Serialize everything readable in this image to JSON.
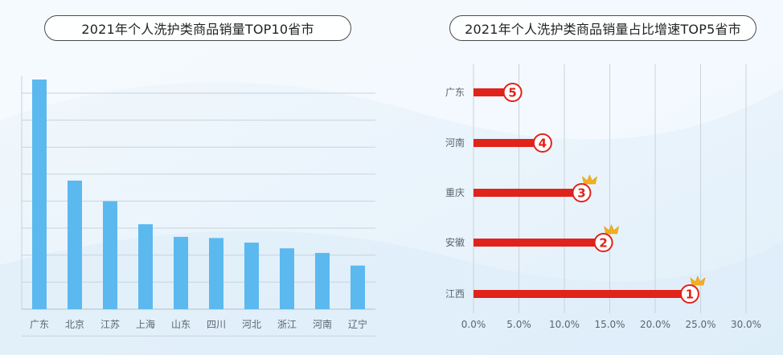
{
  "chart_data": [
    {
      "type": "bar",
      "title": "2021年个人洗护类商品销量TOP10省市",
      "categories": [
        "广东",
        "北京",
        "江苏",
        "上海",
        "山东",
        "四川",
        "河北",
        "浙江",
        "河南",
        "辽宁"
      ],
      "values": [
        100,
        56,
        47,
        37,
        31.5,
        31,
        29,
        26.5,
        24.5,
        19
      ],
      "ylim": [
        0,
        100
      ],
      "grid": true,
      "bar_color": "#5bb9ef"
    },
    {
      "type": "bar",
      "orientation": "horizontal",
      "title": "2021年个人洗护类商品销量占比增速TOP5省市",
      "categories": [
        "广东",
        "河南",
        "重庆",
        "安徽",
        "江西"
      ],
      "values": [
        4.3,
        7.6,
        11.9,
        14.3,
        23.8
      ],
      "ranks": [
        "5",
        "4",
        "3",
        "2",
        "1"
      ],
      "crowned": [
        false,
        false,
        true,
        true,
        true
      ],
      "x_ticks": [
        "0.0%",
        "5.0%",
        "10.0%",
        "15.0%",
        "20.0%",
        "25.0%",
        "30.0%"
      ],
      "xlim": [
        0,
        30
      ],
      "grid": true,
      "bar_color": "#e0231b",
      "crown_color": "#f2b01e"
    }
  ]
}
